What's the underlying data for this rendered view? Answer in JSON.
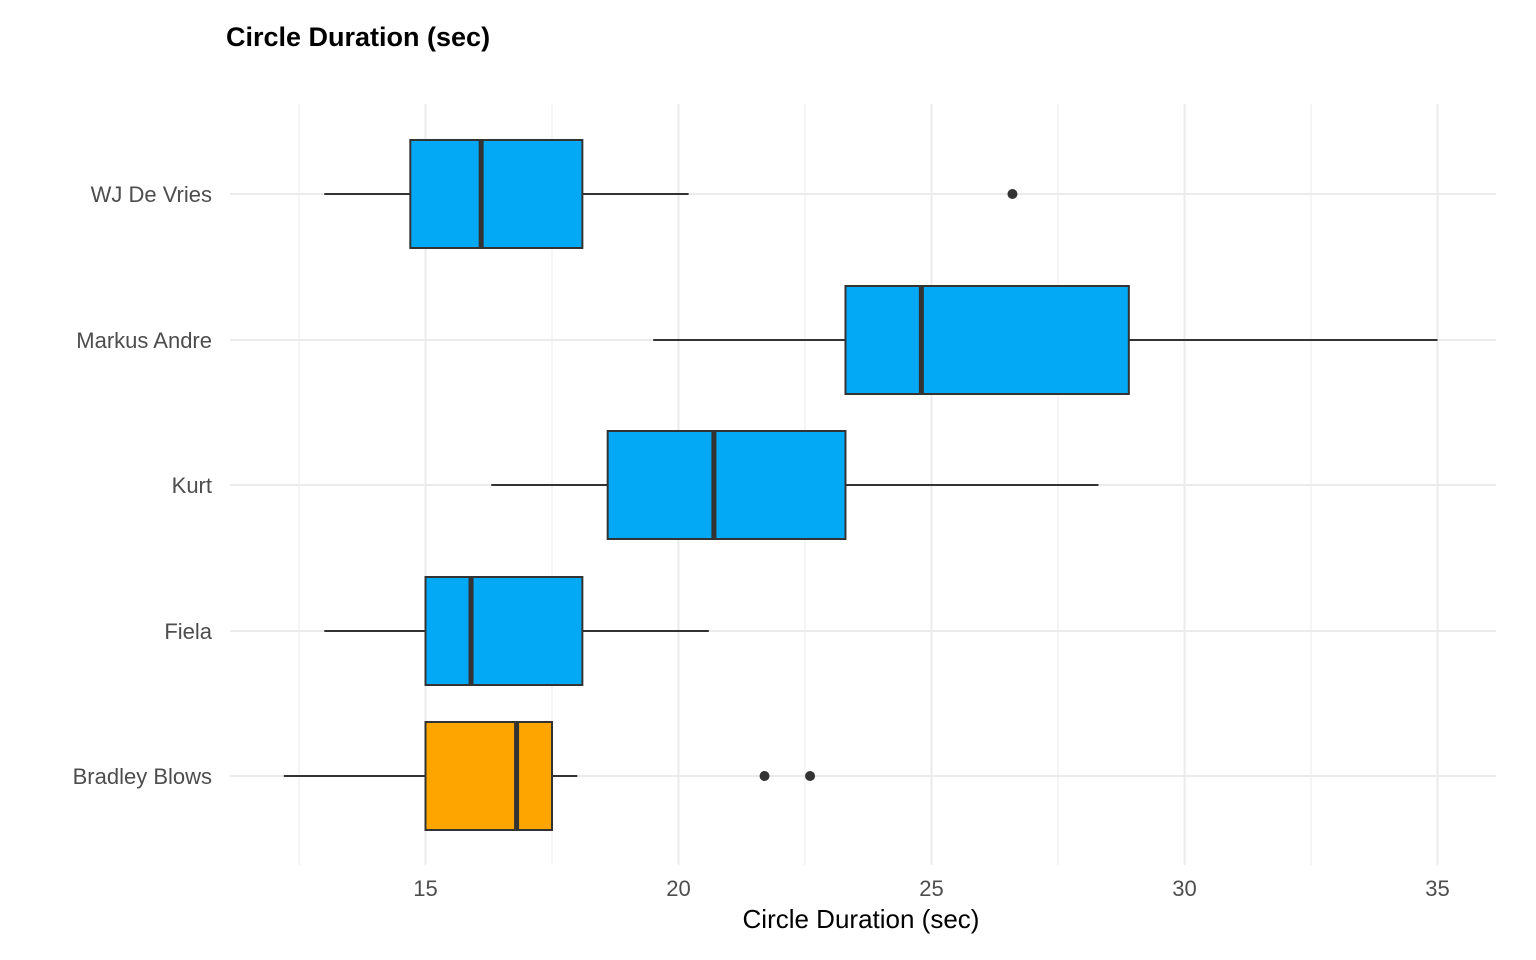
{
  "chart_data": {
    "type": "boxplot",
    "orientation": "horizontal",
    "title": "Circle Duration (sec)",
    "xlabel": "Circle Duration (sec)",
    "ylabel": "",
    "xlim": [
      11.3,
      36.2
    ],
    "xticks": [
      15,
      20,
      25,
      30,
      35
    ],
    "grid": true,
    "legend": "none",
    "categories": [
      "Bradley Blows",
      "Fiela",
      "Kurt",
      "Markus Andre",
      "WJ De Vries"
    ],
    "boxes": [
      {
        "name": "Bradley Blows",
        "min": 12.2,
        "q1": 15.0,
        "median": 16.8,
        "q3": 17.5,
        "max": 18.0,
        "outliers": [
          21.7,
          22.6
        ],
        "color": "#FFA500"
      },
      {
        "name": "Fiela",
        "min": 13.0,
        "q1": 15.0,
        "median": 15.9,
        "q3": 18.1,
        "max": 20.6,
        "outliers": [],
        "color": "#03A9F4"
      },
      {
        "name": "Kurt",
        "min": 16.3,
        "q1": 18.6,
        "median": 20.7,
        "q3": 23.3,
        "max": 28.3,
        "outliers": [],
        "color": "#03A9F4"
      },
      {
        "name": "Markus Andre",
        "min": 19.5,
        "q1": 23.3,
        "median": 24.8,
        "q3": 28.9,
        "max": 35.0,
        "outliers": [],
        "color": "#03A9F4"
      },
      {
        "name": "WJ De Vries",
        "min": 13.0,
        "q1": 14.7,
        "median": 16.1,
        "q3": 18.1,
        "max": 20.2,
        "outliers": [
          26.6
        ],
        "color": "#03A9F4"
      }
    ],
    "colors": {
      "grid": "#EBEBEB",
      "box_line": "#333333",
      "whisker": "#333333"
    }
  }
}
